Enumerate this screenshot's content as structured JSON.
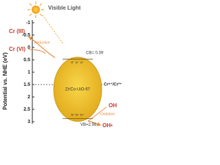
{
  "title": "Visible Light",
  "axis": {
    "label": "Potential vs. NHE (eV)",
    "ylim": [
      -1,
      3
    ],
    "yticks": [
      -1,
      -0.5,
      0,
      0.5,
      1,
      1.5,
      2,
      2.5,
      3
    ]
  },
  "catalyst": "Zr/Co-UiO-67",
  "cb": {
    "label": "CB= 0.39",
    "value": 0.39
  },
  "vb": {
    "label": "VB=2.99",
    "value": 2.99
  },
  "electrons": "e⁻ e⁻ e⁻",
  "holes": "h⁺ h⁺ h⁺",
  "redox": {
    "label": "Cr⁶⁺/Cr³⁺",
    "value": 1.5
  },
  "reduction": {
    "label": "Reduction",
    "product": "Cr (III)",
    "reactant": "Cr (VI)"
  },
  "oxidation": {
    "label": "Oxidation",
    "reactant": "OH",
    "product": "OH•"
  }
}
